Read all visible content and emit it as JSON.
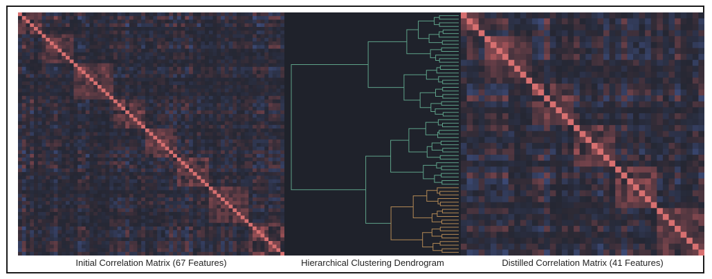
{
  "captions": {
    "left": "Initial Correlation Matrix (67 Features)",
    "middle": "Hierarchical Clustering Dendrogram",
    "right": "Distilled Correlation Matrix (41 Features)"
  },
  "matrices": {
    "initial_features": 67,
    "distilled_features": 41
  },
  "colors": {
    "positive": "#b0585c",
    "negative": "#4a5f9e",
    "neutral": "#252733",
    "diagonal": "#d77070",
    "dendrogram_upper": "#5fa38a",
    "dendrogram_lower": "#b58a55"
  }
}
